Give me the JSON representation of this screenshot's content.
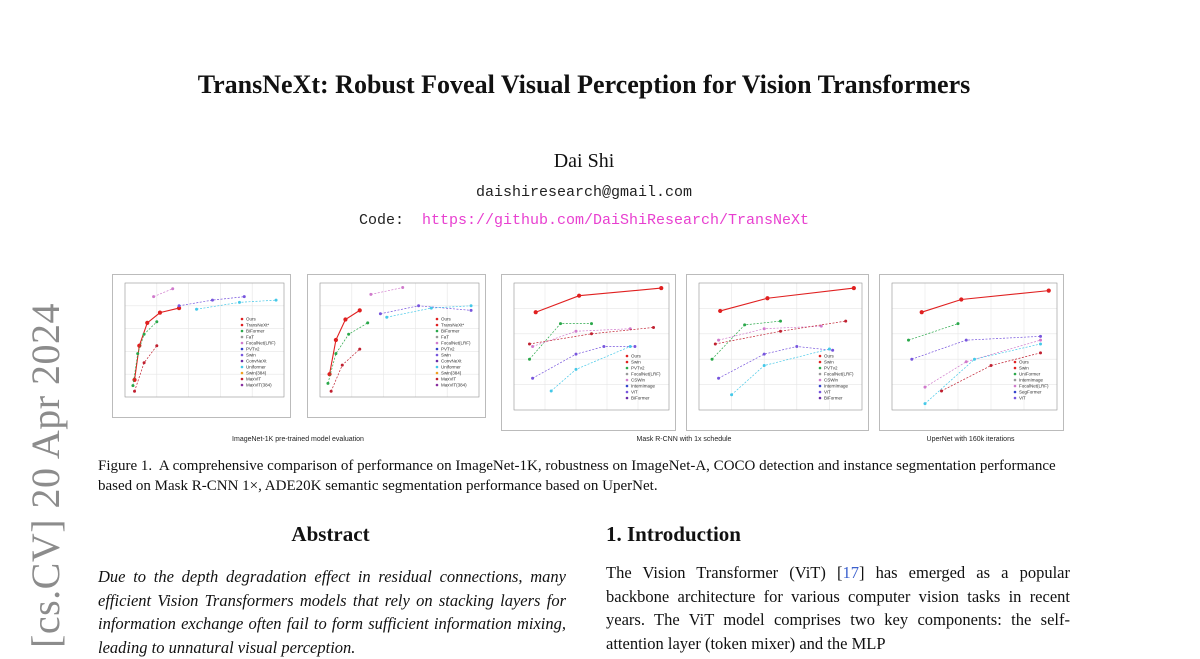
{
  "stamp": "[cs.CV]  20 Apr 2024",
  "title": "TransNeXt: Robust Foveal Visual Perception for Vision Transformers",
  "author": "Dai Shi",
  "email": "daishiresearch@gmail.com",
  "code_label": "Code:",
  "code_url": "https://github.com/DaiShiResearch/TransNeXt",
  "figure": {
    "group_labels": [
      "ImageNet-1K pre-trained model evaluation",
      "Mask R-CNN with 1x schedule",
      "UperNet with 160k iterations"
    ],
    "panel_legends": [
      [
        "Ours",
        "TransNeXt*",
        "BiFormer",
        "FaT",
        "FocalNet(LRF)",
        "PVTv2",
        "Swin",
        "ConvNeXt",
        "Uniformer",
        "Swin(384)",
        "MaxViT",
        "MaxViT(384)"
      ],
      [
        "Ours",
        "TransNeXt*",
        "BiFormer",
        "FaT",
        "FocalNet(LRF)",
        "PVTv2",
        "Swin",
        "ConvNeXt",
        "Uniformer",
        "Swin(384)",
        "MaxViT",
        "MaxViT(384)"
      ],
      [
        "Ours",
        "Swin",
        "PVTv2",
        "FocalNet(LRF)",
        "CSWin",
        "InternImage",
        "ViT",
        "BiFormer"
      ],
      [
        "Ours",
        "Swin",
        "PVTv2",
        "FocalNet(LRF)",
        "CSWin",
        "InternImage",
        "ViT",
        "BiFormer"
      ],
      [
        "Ours",
        "Swin",
        "UniFormer",
        "InternImage",
        "FocalNet(LRF)",
        "SegFormer",
        "ViT"
      ]
    ],
    "caption_label": "Figure 1.",
    "caption_text": "A comprehensive comparison of performance on ImageNet-1K, robustness on ImageNet-A, COCO detection and instance segmentation performance based on Mask R-CNN 1×, ADE20K semantic segmentation performance based on UperNet."
  },
  "abstract": {
    "heading": "Abstract",
    "text": "Due to the depth degradation effect in residual connections, many efficient Vision Transformers models that rely on stacking layers for information exchange often fail to form sufficient information mixing, leading to unnatural visual perception."
  },
  "introduction": {
    "heading": "1. Introduction",
    "text_before": "The Vision Transformer (ViT) [",
    "cite": "17",
    "text_after": "] has emerged as a popular backbone architecture for various computer vision tasks in recent years. The ViT model comprises two key components: the self-attention layer (token mixer) and the MLP"
  },
  "colors": {
    "link": "#e83fd0",
    "cite": "#3a5fcd",
    "ours": "#e02020",
    "stamp": "#8c8c8c"
  }
}
